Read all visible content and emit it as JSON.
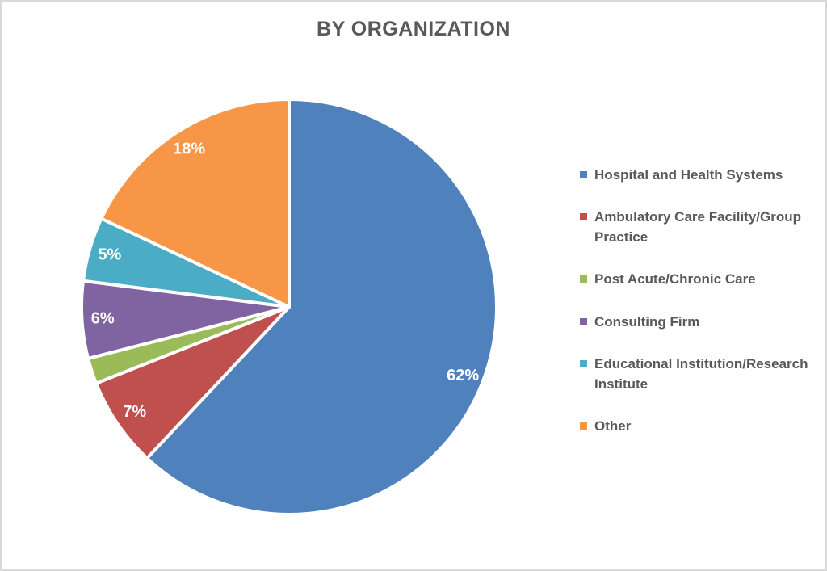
{
  "page": {
    "title": "BY ORGANIZATION"
  },
  "colors": {
    "title_text": "#595959",
    "legend_text": "#595959",
    "page_border": "#d9d9d9",
    "slice_separator": "#ffffff",
    "label_text": "#ffffff"
  },
  "chart_data": {
    "type": "pie",
    "title": "BY ORGANIZATION",
    "legend_position": "right",
    "data_labels": "percent inside, white bold; 2% slice unlabeled",
    "start_angle_deg": 0,
    "direction": "clockwise",
    "slices": [
      {
        "label": "Hospital and Health Systems",
        "value": 62,
        "pct_label": "62%",
        "color": "#4f81bd"
      },
      {
        "label": "Ambulatory Care Facility/Group Practice",
        "value": 7,
        "pct_label": "7%",
        "color": "#c0504d"
      },
      {
        "label": "Post Acute/Chronic Care",
        "value": 2,
        "pct_label": "",
        "color": "#9bbb59"
      },
      {
        "label": "Consulting Firm",
        "value": 6,
        "pct_label": "6%",
        "color": "#8064a2"
      },
      {
        "label": "Educational Institution/Research Institute",
        "value": 5,
        "pct_label": "5%",
        "color": "#4bacc6"
      },
      {
        "label": "Other",
        "value": 18,
        "pct_label": "18%",
        "color": "#f79646"
      }
    ]
  },
  "legend": {
    "items": [
      {
        "lines": [
          "Hospital and Health Systems"
        ],
        "color": "#4f81bd"
      },
      {
        "lines": [
          "Ambulatory Care Facility/Group",
          "Practice"
        ],
        "color": "#c0504d"
      },
      {
        "lines": [
          "Post Acute/Chronic Care"
        ],
        "color": "#9bbb59"
      },
      {
        "lines": [
          "Consulting Firm"
        ],
        "color": "#8064a2"
      },
      {
        "lines": [
          "Educational Institution/Research",
          "Institute"
        ],
        "color": "#4bacc6"
      },
      {
        "lines": [
          "Other"
        ],
        "color": "#f79646"
      }
    ]
  }
}
